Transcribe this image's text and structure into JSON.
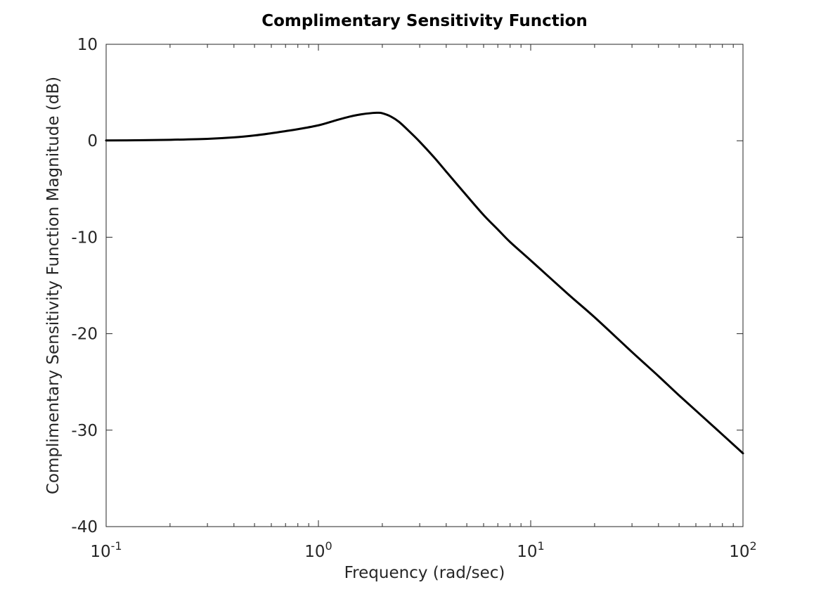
{
  "chart_data": {
    "type": "line",
    "title": "Complimentary Sensitivity Function",
    "xlabel": "Frequency (rad/sec)",
    "ylabel": "Complimentary Sensitivity Function Magnitude (dB)",
    "xscale": "log",
    "xlim": [
      0.1,
      100
    ],
    "ylim": [
      -40,
      10
    ],
    "x_ticks": [
      {
        "value": 0.1,
        "base": "10",
        "exp": "-1"
      },
      {
        "value": 1,
        "base": "10",
        "exp": "0"
      },
      {
        "value": 10,
        "base": "10",
        "exp": "1"
      },
      {
        "value": 100,
        "base": "10",
        "exp": "2"
      }
    ],
    "y_ticks": [
      {
        "value": 10,
        "label": "10"
      },
      {
        "value": 0,
        "label": "0"
      },
      {
        "value": -10,
        "label": "-10"
      },
      {
        "value": -20,
        "label": "-20"
      },
      {
        "value": -30,
        "label": "-30"
      },
      {
        "value": -40,
        "label": "-40"
      }
    ],
    "grid": false,
    "line_color": "#000000",
    "series": [
      {
        "x": [
          0.1,
          0.15,
          0.2,
          0.3,
          0.4,
          0.5,
          0.6,
          0.7,
          0.8,
          1.0,
          1.2,
          1.4,
          1.6,
          1.8,
          1.9,
          2.0,
          2.2,
          2.4,
          2.7,
          3.0,
          3.5,
          4.0,
          5.0,
          6.0,
          7.0,
          8.0,
          10,
          15,
          20,
          30,
          40,
          50,
          70,
          100
        ],
        "y": [
          0.03,
          0.06,
          0.1,
          0.2,
          0.35,
          0.55,
          0.78,
          1.0,
          1.2,
          1.6,
          2.1,
          2.5,
          2.75,
          2.88,
          2.9,
          2.85,
          2.5,
          1.95,
          0.9,
          -0.1,
          -1.7,
          -3.2,
          -5.7,
          -7.7,
          -9.2,
          -10.5,
          -12.4,
          -15.9,
          -18.3,
          -21.9,
          -24.4,
          -26.4,
          -29.3,
          -32.4
        ]
      }
    ]
  }
}
